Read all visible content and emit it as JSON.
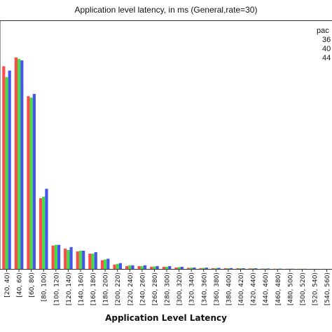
{
  "chart_data": {
    "type": "bar",
    "title": "Application level latency, in ms (General,rate=30)",
    "xlabel": "Application Level Latency",
    "ylabel": "",
    "legend": {
      "title": "pac",
      "entries": [
        "36",
        "40",
        "44"
      ],
      "placement": "top-right"
    },
    "categories": [
      "[20, 40)",
      "[40, 60)",
      "[60, 80)",
      "[80, 100)",
      "[100, 120)",
      "[120, 140)",
      "[140, 160)",
      "[160, 180)",
      "[180, 200)",
      "[200, 220)",
      "[220, 240)",
      "[240, 260)",
      "[260, 280)",
      "[280, 300)",
      "[300, 320)",
      "[320, 340)",
      "[340, 360)",
      "[360, 380)",
      "[380, 400)",
      "[400, 420)",
      "[420, 440)",
      "[440, 460)",
      "[460, 480)",
      "[480, 500)",
      "[500, 520)",
      "[520, 540)",
      "[540, 560)"
    ],
    "series": [
      {
        "name": "36",
        "color": "#ff4a4a",
        "values": [
          278,
          290,
          237,
          97,
          32,
          28,
          24,
          21,
          12,
          6,
          4,
          4,
          3,
          3,
          2,
          1.5,
          1.2,
          1,
          1,
          1,
          0.8,
          0.5,
          0.3,
          0.3,
          0.2,
          0.1,
          0.1
        ]
      },
      {
        "name": "40",
        "color": "#44dd44",
        "values": [
          263,
          288,
          235,
          99,
          33,
          26,
          25,
          21,
          13,
          7,
          5,
          4,
          3.5,
          3,
          2.5,
          1.8,
          1.5,
          1.2,
          1,
          1,
          0.8,
          0.5,
          0.3,
          0.3,
          0.2,
          0.1,
          0.1
        ]
      },
      {
        "name": "44",
        "color": "#4455ee",
        "values": [
          272,
          286,
          240,
          110,
          33,
          30,
          25,
          23,
          14,
          8,
          5,
          5,
          4,
          4,
          3,
          2,
          1.8,
          1.5,
          1.2,
          1,
          0.9,
          0.6,
          0.4,
          0.3,
          0.2,
          0.1,
          0.1
        ]
      }
    ],
    "ylim": [
      0,
      340
    ],
    "grid": false
  }
}
